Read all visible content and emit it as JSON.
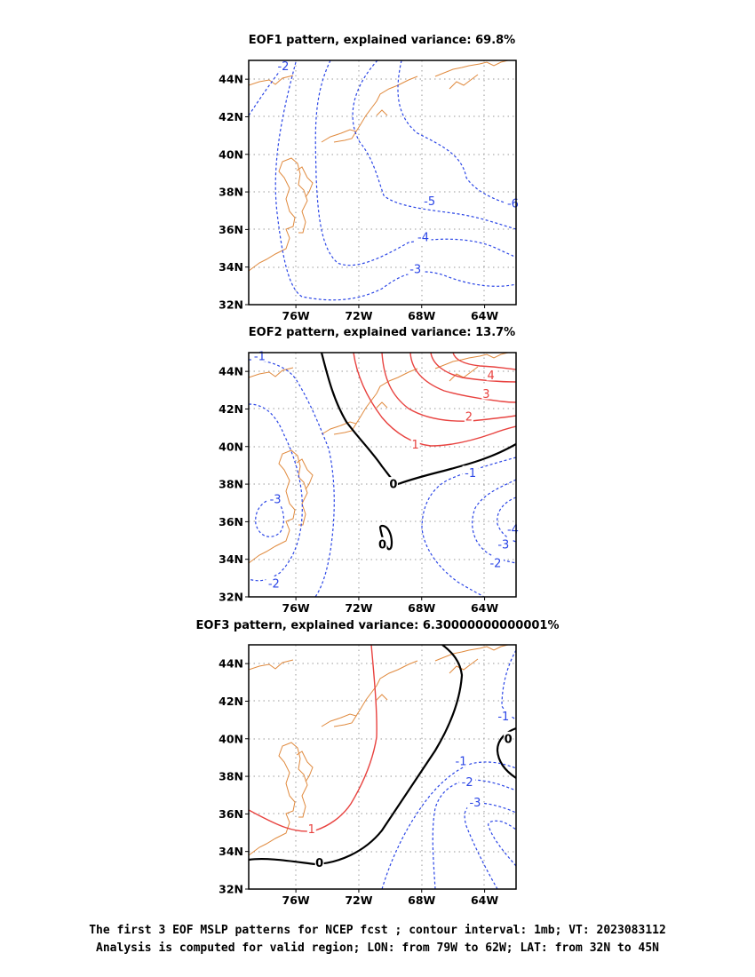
{
  "footer": {
    "line1": "The first 3 EOF MSLP patterns for NCEP fcst ; contour interval: 1mb; VT: 2023083112",
    "line2": "Analysis is computed for valid region; LON: from 79W to 62W; LAT: from 32N to 45N"
  },
  "colors": {
    "negative_contour": "#2b46e6",
    "positive_contour": "#e8423f",
    "zero_contour": "#000000",
    "coastline": "#e08a3e",
    "grid": "#999999"
  },
  "chart_data": [
    {
      "type": "contour",
      "title": "EOF1 pattern, explained variance: 69.8%",
      "xlim": [
        -79,
        -62
      ],
      "ylim": [
        32,
        45
      ],
      "xticks": [
        "76W",
        "72W",
        "68W",
        "64W"
      ],
      "yticks": [
        "32N",
        "34N",
        "36N",
        "38N",
        "40N",
        "42N",
        "44N"
      ],
      "grid": true,
      "contour_labels": [
        {
          "text": "-2",
          "lon": -76.8,
          "lat": 44.7
        },
        {
          "text": "-5",
          "lon": -67.5,
          "lat": 37.5
        },
        {
          "text": "-6",
          "lon": -62.2,
          "lat": 37.4
        },
        {
          "text": "-4",
          "lon": -67.9,
          "lat": 35.6
        },
        {
          "text": "-3",
          "lon": -68.4,
          "lat": 33.9
        }
      ]
    },
    {
      "type": "contour",
      "title": "EOF2 pattern, explained variance: 13.7%",
      "xlim": [
        -79,
        -62
      ],
      "ylim": [
        32,
        45
      ],
      "xticks": [
        "76W",
        "72W",
        "68W",
        "64W"
      ],
      "yticks": [
        "32N",
        "34N",
        "36N",
        "38N",
        "40N",
        "42N",
        "44N"
      ],
      "grid": true,
      "contour_labels": [
        {
          "text": "-1",
          "lon": -78.3,
          "lat": 44.8
        },
        {
          "text": "-3",
          "lon": -77.3,
          "lat": 37.2
        },
        {
          "text": "-2",
          "lon": -77.4,
          "lat": 32.7
        },
        {
          "text": "0",
          "lon": -69.8,
          "lat": 38.0
        },
        {
          "text": "0",
          "lon": -70.5,
          "lat": 34.8
        },
        {
          "text": "1",
          "lon": -68.4,
          "lat": 40.1
        },
        {
          "text": "2",
          "lon": -65.0,
          "lat": 41.6
        },
        {
          "text": "3",
          "lon": -63.9,
          "lat": 42.8
        },
        {
          "text": "4",
          "lon": -63.6,
          "lat": 43.8
        },
        {
          "text": "-1",
          "lon": -64.9,
          "lat": 38.6
        },
        {
          "text": "-4",
          "lon": -62.2,
          "lat": 35.6
        },
        {
          "text": "-3",
          "lon": -62.8,
          "lat": 34.8
        },
        {
          "text": "-2",
          "lon": -63.3,
          "lat": 33.8
        }
      ]
    },
    {
      "type": "contour",
      "title": "EOF3 pattern, explained variance: 6.30000000000001%",
      "xlim": [
        -79,
        -62
      ],
      "ylim": [
        32,
        45
      ],
      "xticks": [
        "76W",
        "72W",
        "68W",
        "64W"
      ],
      "yticks": [
        "32N",
        "34N",
        "36N",
        "38N",
        "40N",
        "42N",
        "44N"
      ],
      "grid": true,
      "contour_labels": [
        {
          "text": "1",
          "lon": -75.0,
          "lat": 35.2
        },
        {
          "text": "0",
          "lon": -74.5,
          "lat": 33.4
        },
        {
          "text": "0",
          "lon": -62.5,
          "lat": 40.0
        },
        {
          "text": "-1",
          "lon": -62.8,
          "lat": 41.2
        },
        {
          "text": "-1",
          "lon": -65.5,
          "lat": 38.8
        },
        {
          "text": "-2",
          "lon": -65.1,
          "lat": 37.7
        },
        {
          "text": "-3",
          "lon": -64.6,
          "lat": 36.6
        }
      ]
    }
  ]
}
